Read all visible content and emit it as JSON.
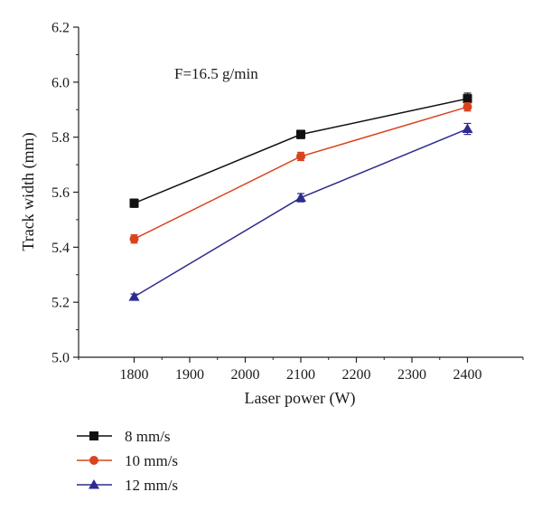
{
  "chart_data": {
    "type": "line",
    "title": "",
    "annotation": "F=16.5 g/min",
    "xlabel": "Laser power (W)",
    "ylabel": "Track width (mm)",
    "xlim": [
      1700,
      2500
    ],
    "ylim": [
      5.0,
      6.2
    ],
    "xticks": [
      1800,
      1900,
      2000,
      2100,
      2200,
      2300,
      2400
    ],
    "yticks": [
      5.0,
      5.2,
      5.4,
      5.6,
      5.8,
      6.0,
      6.2
    ],
    "ytick_labels": [
      "5.0",
      "5.2",
      "5.4",
      "5.6",
      "5.8",
      "6.0",
      "6.2"
    ],
    "grid": false,
    "legend_position": "bottom-left, below plot",
    "x": [
      1800,
      2100,
      2400
    ],
    "series": [
      {
        "name": "8 mm/s",
        "values": [
          5.56,
          5.81,
          5.94
        ],
        "errors": [
          0.015,
          0.015,
          0.02
        ],
        "color": "#111111",
        "marker": "square"
      },
      {
        "name": "10 mm/s",
        "values": [
          5.43,
          5.73,
          5.91
        ],
        "errors": [
          0.015,
          0.015,
          0.015
        ],
        "color": "#d9441f",
        "marker": "circle"
      },
      {
        "name": "12 mm/s",
        "values": [
          5.22,
          5.58,
          5.83
        ],
        "errors": [
          0.01,
          0.015,
          0.02
        ],
        "color": "#2e2b8f",
        "marker": "triangle"
      }
    ]
  }
}
